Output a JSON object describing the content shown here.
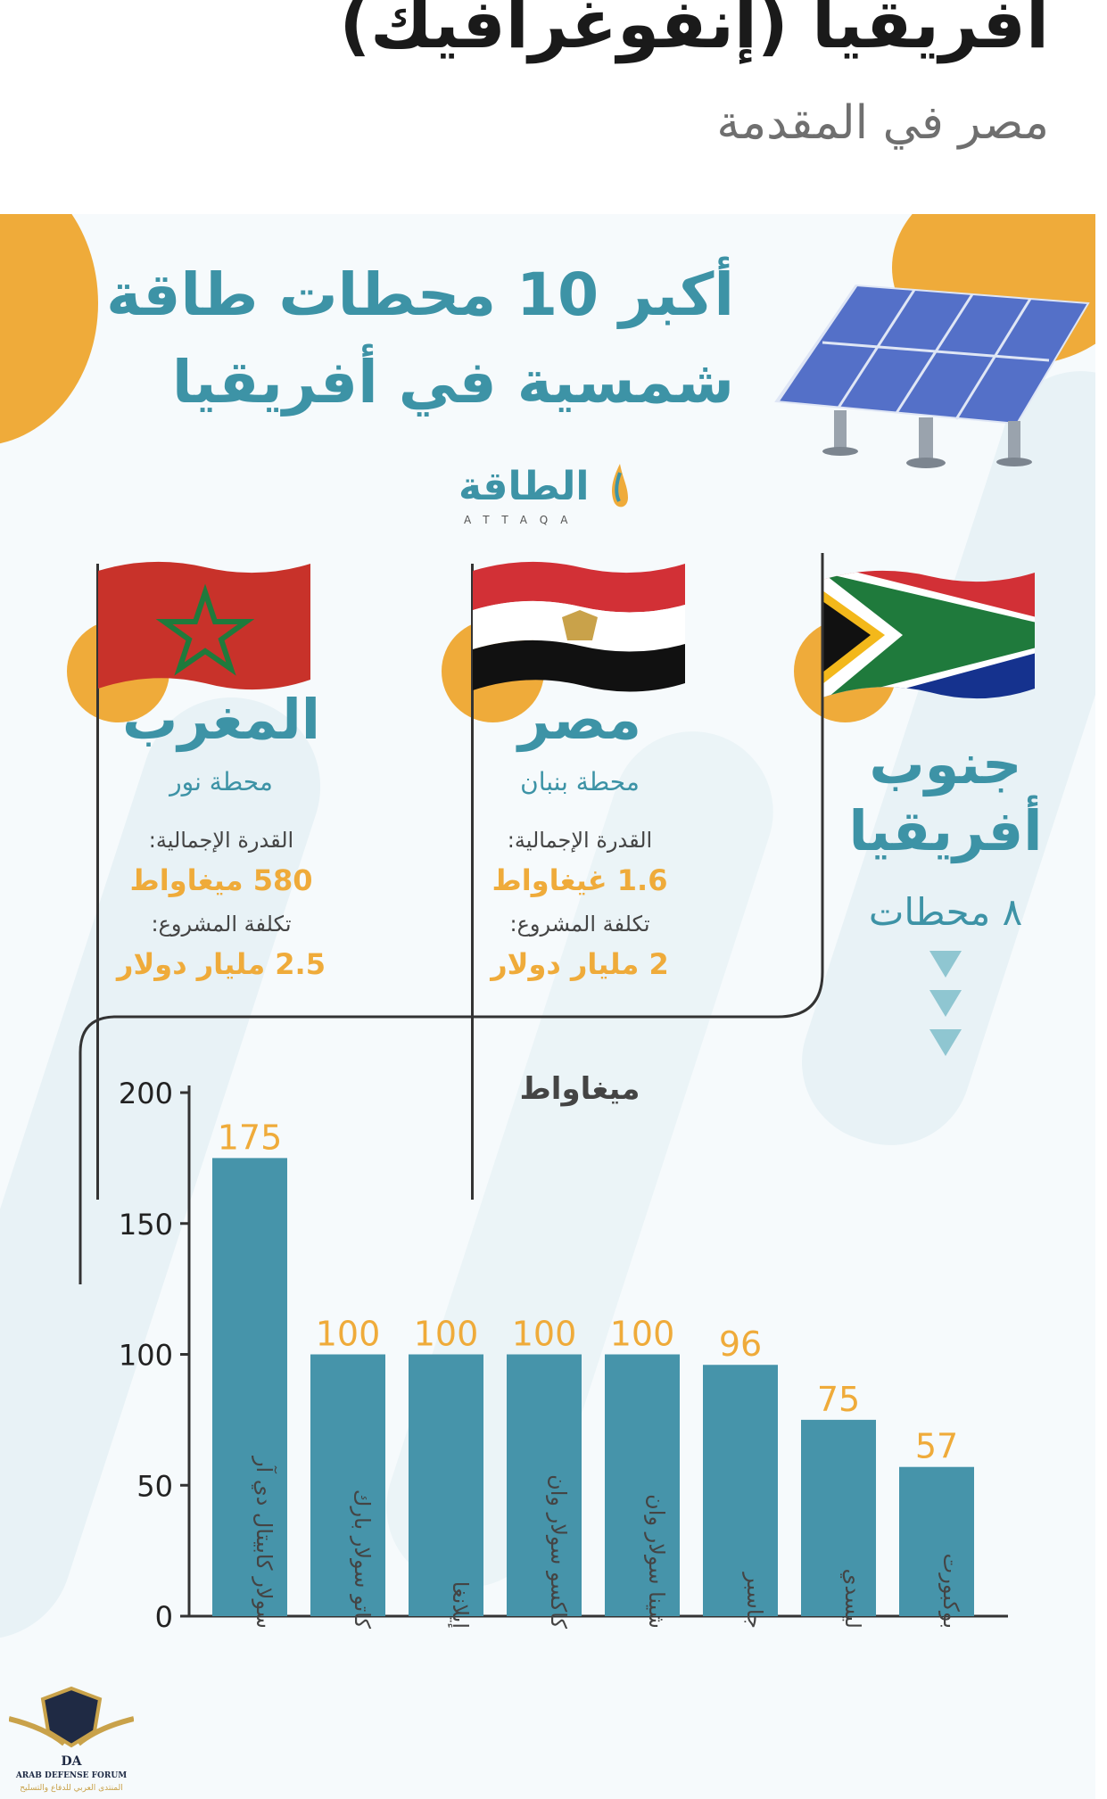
{
  "header": {
    "title": "أفريقيا (إنفوغرافيك)",
    "subtitle": "مصر في المقدمة"
  },
  "infographic": {
    "title_line1": "أكبر 10 محطات طاقة",
    "title_line2": "شمسية في أفريقيا",
    "brand": "الطاقة",
    "brand_latin": "ATTAQA",
    "countries": [
      {
        "name": "المغرب",
        "station": "محطة نور",
        "capacity_label": "القدرة الإجمالية:",
        "capacity_value": "580 ميغاواط",
        "cost_label": "تكلفة المشروع:",
        "cost_value": "2.5 مليار دولار"
      },
      {
        "name": "مصر",
        "station": "محطة بنبان",
        "capacity_label": "القدرة الإجمالية:",
        "capacity_value": "1.6 غيغاواط",
        "cost_label": "تكلفة المشروع:",
        "cost_value": "2 مليار دولار"
      },
      {
        "name_line1": "جنوب",
        "name_line2": "أفريقيا",
        "stations_count": "٨ محطات"
      }
    ],
    "colors": {
      "teal": "#3d93a6",
      "orange": "#efab3a",
      "bar": "#4694aa"
    }
  },
  "footer_logo": {
    "name": "DA",
    "text_en": "ARAB DEFENSE FORUM",
    "text_ar": "المنتدى العربي للدفاع والتسليح"
  },
  "chart_data": {
    "type": "bar",
    "unit_label": "ميغاواط",
    "categories": [
      "سولار كابيتال دي آر",
      "كاتو سولار بارك",
      "إيلانغا",
      "كاكسو سولار وان",
      "شينا سولار وان",
      "جاسبر",
      "ليسدي",
      "بوكبورت"
    ],
    "values": [
      175,
      100,
      100,
      100,
      100,
      96,
      75,
      57
    ],
    "value_labels": [
      "175",
      "100",
      "100",
      "100",
      "100",
      "96",
      "75",
      "57"
    ],
    "ylim": [
      0,
      200
    ],
    "yticks": [
      0,
      50,
      100,
      150,
      200
    ],
    "ytick_labels": [
      "0",
      "50",
      "100",
      "150",
      "200"
    ],
    "grid": false
  }
}
